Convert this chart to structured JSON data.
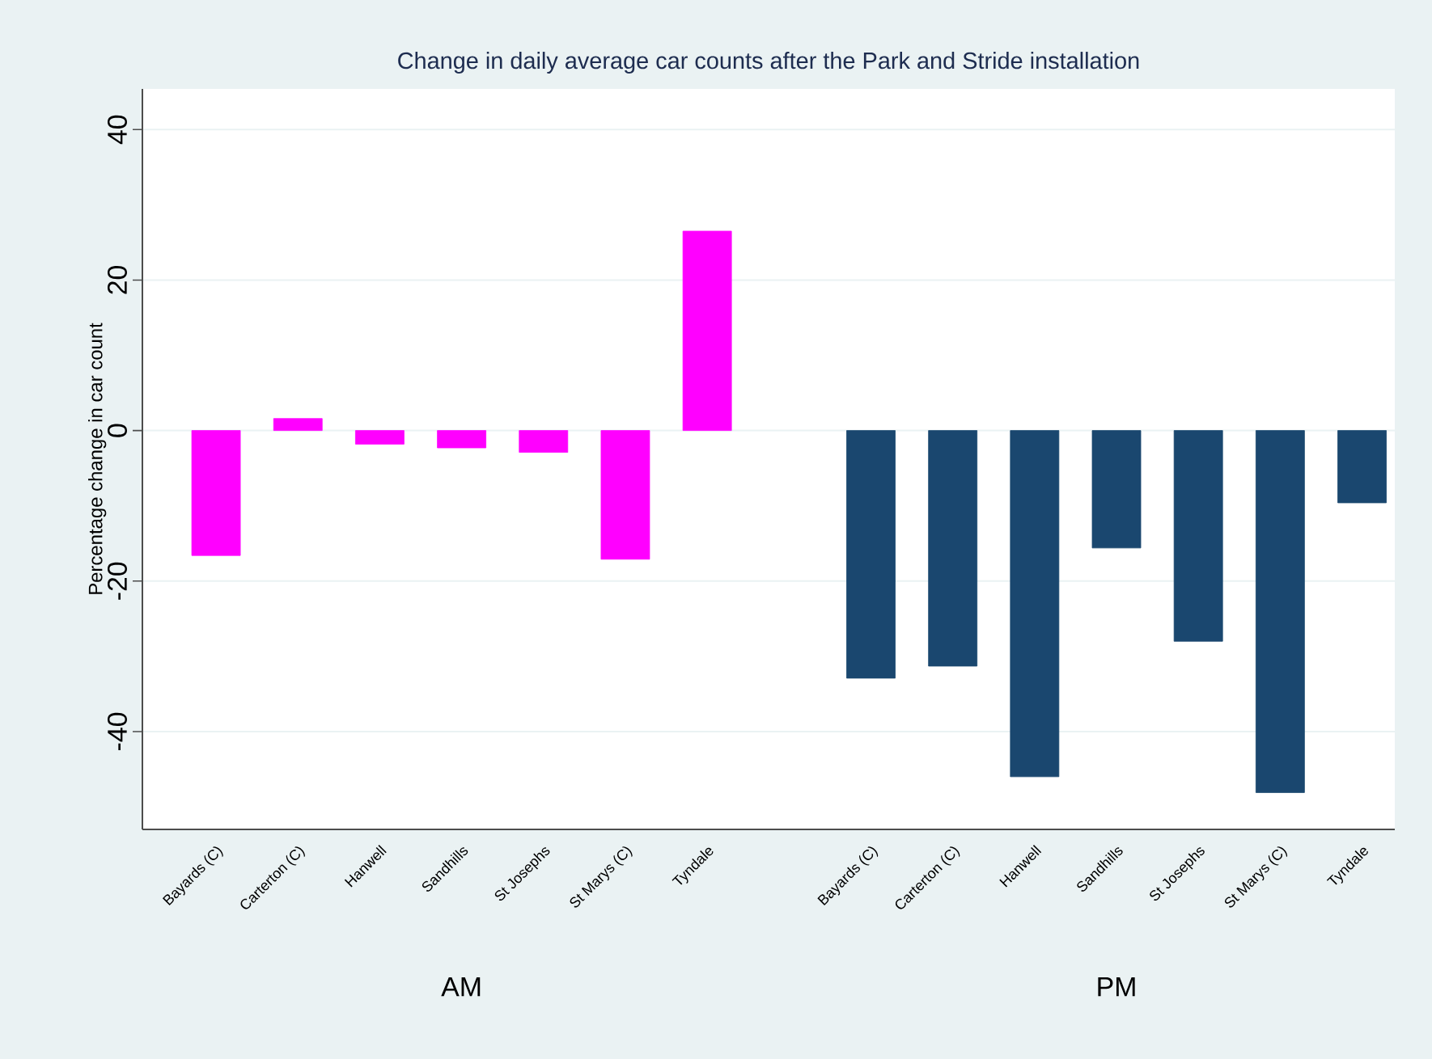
{
  "chart_data": {
    "type": "bar",
    "title": "Change in daily average car counts after the Park and Stride installation",
    "ylabel": "Percentage change in car count",
    "categories": [
      "Bayards (C)",
      "Carterton (C)",
      "Hanwell",
      "Sandhills",
      "St Josephs",
      "St Marys (C)",
      "Tyndale",
      null,
      "Bayards (C)",
      "Carterton (C)",
      "Hanwell",
      "Sandhills",
      "St Josephs",
      "St Marys (C)",
      "Tyndale"
    ],
    "series": [
      {
        "color": "#ff00ff",
        "values": [
          -16.6,
          1.6,
          -1.8,
          -2.3,
          -2.9,
          -17.1,
          26.5,
          null,
          null,
          null,
          null,
          null,
          null,
          null,
          null
        ]
      },
      {
        "color": "#1a476f",
        "values": [
          null,
          null,
          null,
          null,
          null,
          null,
          null,
          null,
          -32.9,
          -31.3,
          -46.0,
          -15.6,
          -28.0,
          -48.1,
          -9.6
        ]
      }
    ],
    "annotations": [
      "AM",
      "PM"
    ],
    "ylim": [
      -53,
      45.4
    ],
    "yticks": [
      -40,
      -20,
      0,
      20,
      40
    ],
    "grid": "y"
  }
}
